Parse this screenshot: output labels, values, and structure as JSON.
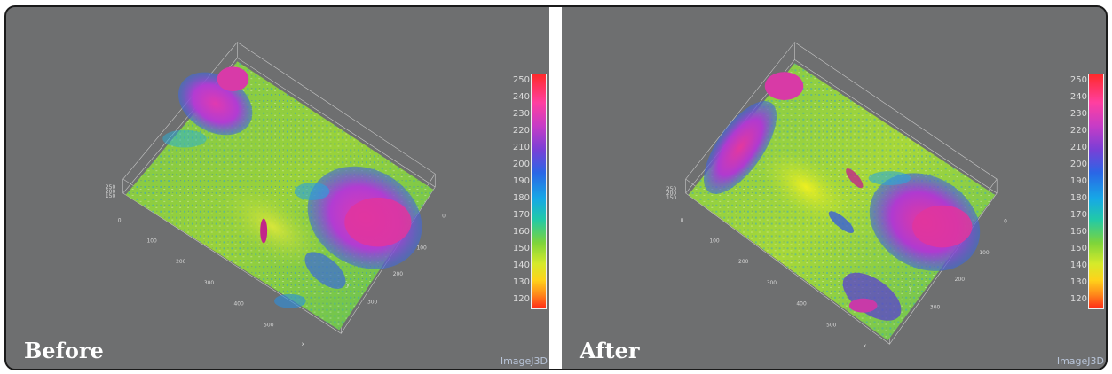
{
  "panels": [
    {
      "caption": "Before",
      "watermark": "ImageJ3D",
      "colorbar_ticks": [
        "250",
        "240",
        "230",
        "220",
        "210",
        "200",
        "190",
        "180",
        "170",
        "160",
        "150",
        "140",
        "130",
        "120"
      ],
      "x_ticks": [
        "0",
        "100",
        "200",
        "300",
        "400",
        "500",
        "x"
      ],
      "y_ticks": [
        "0",
        "100",
        "200",
        "300",
        "y"
      ],
      "z_ticks": [
        "250",
        "200",
        "150"
      ]
    },
    {
      "caption": "After",
      "watermark": "ImageJ3D",
      "colorbar_ticks": [
        "250",
        "240",
        "230",
        "220",
        "210",
        "200",
        "190",
        "180",
        "170",
        "160",
        "150",
        "140",
        "130",
        "120"
      ],
      "x_ticks": [
        "0",
        "100",
        "200",
        "300",
        "400",
        "500",
        "x"
      ],
      "y_ticks": [
        "0",
        "100",
        "200",
        "300",
        "y"
      ],
      "z_ticks": [
        "250",
        "200",
        "150"
      ]
    }
  ],
  "colors": {
    "background": "#6e6f70",
    "caption": "#ffffff",
    "watermark": "#b8c4d8"
  }
}
